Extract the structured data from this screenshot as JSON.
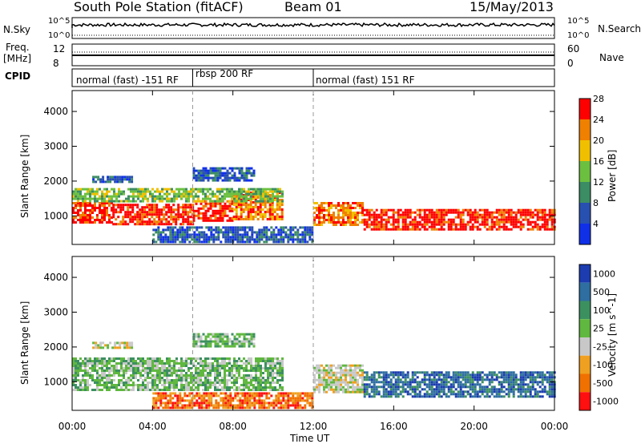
{
  "header": {
    "station": "South Pole Station (fitACF)",
    "beam": "Beam 01",
    "date": "15/May/2013"
  },
  "aux_panels": {
    "nsky_label": "N.Sky",
    "nsky_ticks": [
      "10^5",
      "10^0"
    ],
    "nsearch_label": "N.Search",
    "nsearch_ticks": [
      "10^5",
      "10^0"
    ],
    "freq_label_1": "Freq.",
    "freq_label_2": "[MHz]",
    "freq_ticks": [
      "12",
      "8"
    ],
    "nave_label": "Nave",
    "nave_ticks": [
      "60",
      "0"
    ],
    "cpid_label": "CPID",
    "cpid_segments": [
      {
        "label": "normal (fast) -151 RF",
        "start_hour": 0,
        "end_hour": 6
      },
      {
        "label": "rbsp 200 RF",
        "start_hour": 6,
        "end_hour": 12
      },
      {
        "label": "normal (fast) 151 RF",
        "start_hour": 12,
        "end_hour": 24
      }
    ]
  },
  "chart_data": [
    {
      "type": "heatmap",
      "name": "power",
      "ylabel": "Slant Range [km]",
      "yticks": [
        1000,
        2000,
        3000,
        4000
      ],
      "ylim": [
        180,
        4600
      ],
      "xlim_hours": [
        0,
        24
      ],
      "colorbar_label": "Power [dB]",
      "colorbar_ticks": [
        "4",
        "8",
        "12",
        "16",
        "20",
        "24",
        "28"
      ],
      "colorbar_colors": [
        "#1030e8",
        "#2850b0",
        "#3c8c64",
        "#6cc040",
        "#f0c000",
        "#f08000",
        "#ff0000"
      ],
      "bands": [
        {
          "start_hour": 0.0,
          "end_hour": 2.0,
          "range_min": 800,
          "range_max": 1400,
          "level": 6
        },
        {
          "start_hour": 2.0,
          "end_hour": 6.0,
          "range_min": 750,
          "range_max": 1350,
          "level": 6
        },
        {
          "start_hour": 6.0,
          "end_hour": 8.0,
          "range_min": 850,
          "range_max": 1450,
          "level": 6
        },
        {
          "start_hour": 8.0,
          "end_hour": 10.5,
          "range_min": 900,
          "range_max": 1700,
          "level": 5
        },
        {
          "start_hour": 12.0,
          "end_hour": 14.5,
          "range_min": 750,
          "range_max": 1400,
          "level": 5
        },
        {
          "start_hour": 14.5,
          "end_hour": 24.0,
          "range_min": 600,
          "range_max": 1200,
          "level": 6
        },
        {
          "start_hour": 0.0,
          "end_hour": 10.5,
          "range_min": 1400,
          "range_max": 1800,
          "level": 3
        },
        {
          "start_hour": 1.0,
          "end_hour": 3.0,
          "range_min": 2000,
          "range_max": 2150,
          "level": 1
        },
        {
          "start_hour": 6.0,
          "end_hour": 9.0,
          "range_min": 2000,
          "range_max": 2400,
          "level": 1
        },
        {
          "start_hour": 4.0,
          "end_hour": 12.0,
          "range_min": 250,
          "range_max": 700,
          "level": 1
        }
      ]
    },
    {
      "type": "heatmap",
      "name": "velocity",
      "ylabel": "Slant Range [km]",
      "yticks": [
        1000,
        2000,
        3000,
        4000
      ],
      "ylim": [
        180,
        4600
      ],
      "xlim_hours": [
        0,
        24
      ],
      "xticks": [
        "00:00",
        "04:00",
        "08:00",
        "12:00",
        "16:00",
        "20:00",
        "00:00"
      ],
      "xlabel": "Time UT",
      "colorbar_label": "Velocity [m s^-1]",
      "colorbar_ticks": [
        "1000",
        "500",
        "100",
        "25",
        "-25",
        "-100",
        "-500",
        "-1000"
      ],
      "colorbar_colors": [
        "#1c3cb0",
        "#2e6ea0",
        "#3c9060",
        "#60b840",
        "#c8c8c8",
        "#f0a020",
        "#f07000",
        "#ff1010"
      ],
      "bands": [
        {
          "start_hour": 0.0,
          "end_hour": 10.5,
          "range_min": 800,
          "range_max": 1700,
          "level": 3
        },
        {
          "start_hour": 12.0,
          "end_hour": 14.5,
          "range_min": 700,
          "range_max": 1500,
          "level": 4
        },
        {
          "start_hour": 14.5,
          "end_hour": 24.0,
          "range_min": 600,
          "range_max": 1300,
          "level": 1
        },
        {
          "start_hour": 4.0,
          "end_hour": 12.0,
          "range_min": 250,
          "range_max": 700,
          "level": 6
        },
        {
          "start_hour": 1.0,
          "end_hour": 3.0,
          "range_min": 2000,
          "range_max": 2150,
          "level": 4
        },
        {
          "start_hour": 6.0,
          "end_hour": 9.0,
          "range_min": 2000,
          "range_max": 2400,
          "level": 3
        }
      ]
    }
  ]
}
